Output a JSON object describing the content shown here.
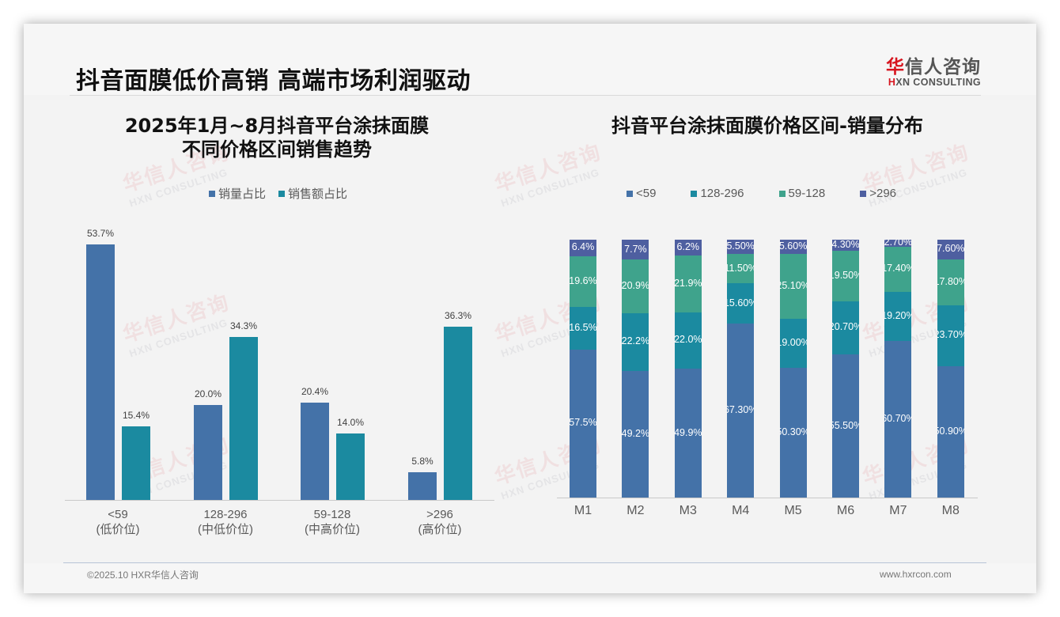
{
  "header": {
    "title": "抖音面膜低价高销 高端市场利润驱动",
    "logo_cn_first": "华",
    "logo_cn_rest": "信人咨询",
    "logo_en_first": "H",
    "logo_en_rest": "XN CONSULTING"
  },
  "watermark": {
    "cn": "华信人咨询",
    "en": "HXN CONSULTING"
  },
  "colors": {
    "sales_volume": "#4472a8",
    "sales_amount": "#1b8aa0",
    "lt59": "#4472a8",
    "r128_296": "#1b8aa0",
    "r59_128": "#3fa38c",
    "gt296": "#4e5fa0"
  },
  "left_chart": {
    "title_line1": "2025年1月~8月抖音平台涂抹面膜",
    "title_line2": "不同价格区间销售趋势",
    "legend": [
      "销量占比",
      "销售额占比"
    ]
  },
  "right_chart": {
    "title": "抖音平台涂抹面膜价格区间-销量分布",
    "legend": [
      "<59",
      "128-296",
      "59-128",
      ">296"
    ]
  },
  "chart_data": [
    {
      "type": "bar",
      "title": "2025年1月~8月抖音平台涂抹面膜不同价格区间销售趋势",
      "categories": [
        "<59",
        "128-296",
        "59-128",
        ">296"
      ],
      "category_sublabels": [
        "(低价位)",
        "(中低价位)",
        "(中高价位)",
        "(高价位)"
      ],
      "series": [
        {
          "name": "销量占比",
          "values": [
            53.7,
            20.0,
            20.4,
            5.8
          ],
          "labels": [
            "53.7%",
            "20.0%",
            "20.4%",
            "5.8%"
          ]
        },
        {
          "name": "销售额占比",
          "values": [
            15.4,
            34.3,
            14.0,
            36.3
          ],
          "labels": [
            "15.4%",
            "34.3%",
            "14.0%",
            "36.3%"
          ]
        }
      ],
      "xlabel": "",
      "ylabel": "",
      "ylim": [
        0,
        55
      ],
      "grid": false,
      "legend_position": "top",
      "unit": "%"
    },
    {
      "type": "bar",
      "stacked": true,
      "title": "抖音平台涂抹面膜价格区间-销量分布",
      "categories": [
        "M1",
        "M2",
        "M3",
        "M4",
        "M5",
        "M6",
        "M7",
        "M8"
      ],
      "series": [
        {
          "name": "<59",
          "values": [
            57.5,
            49.2,
            49.9,
            67.3,
            50.3,
            55.5,
            60.7,
            50.9
          ],
          "labels": [
            "57.5%",
            "49.2%",
            "49.9%",
            "67.30%",
            "50.30%",
            "55.50%",
            "60.70%",
            "50.90%"
          ]
        },
        {
          "name": "128-296",
          "values": [
            16.5,
            22.2,
            22.0,
            15.6,
            19.0,
            20.7,
            19.2,
            23.7
          ],
          "labels": [
            "16.5%",
            "22.2%",
            "22.0%",
            "15.60%",
            "19.00%",
            "20.70%",
            "19.20%",
            "23.70%"
          ]
        },
        {
          "name": "59-128",
          "values": [
            19.6,
            20.9,
            21.9,
            11.5,
            25.1,
            19.5,
            17.4,
            17.8
          ],
          "labels": [
            "19.6%",
            "20.9%",
            "21.9%",
            "11.50%",
            "25.10%",
            "19.50%",
            "17.40%",
            "17.80%"
          ]
        },
        {
          "name": ">296",
          "values": [
            6.4,
            7.7,
            6.2,
            5.5,
            5.6,
            4.3,
            2.7,
            7.6
          ],
          "labels": [
            "6.4%",
            "7.7%",
            "6.2%",
            "5.50%",
            "5.60%",
            "4.30%",
            "2.70%",
            "7.60%"
          ]
        }
      ],
      "xlabel": "",
      "ylabel": "",
      "ylim": [
        0,
        100
      ],
      "grid": false,
      "legend_position": "top",
      "unit": "%"
    }
  ],
  "footer": {
    "copyright": "©2025.10 HXR华信人咨询",
    "website": "www.hxrcon.com"
  }
}
